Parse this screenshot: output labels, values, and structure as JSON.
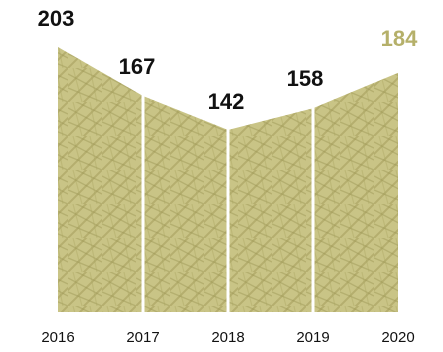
{
  "chart_data": {
    "type": "area",
    "categories": [
      "2016",
      "2017",
      "2018",
      "2019",
      "2020"
    ],
    "values": [
      203,
      167,
      142,
      158,
      184
    ],
    "data_labels": [
      "203",
      "167",
      "142",
      "158",
      "184"
    ],
    "ylim": [
      0,
      210
    ],
    "grid": false,
    "legend": "none",
    "colors": {
      "fill": "#c9c486",
      "hatch": "#a39d5a",
      "highlight_label": "#b5b06a",
      "label": "#111111",
      "separator": "#ffffff"
    }
  }
}
